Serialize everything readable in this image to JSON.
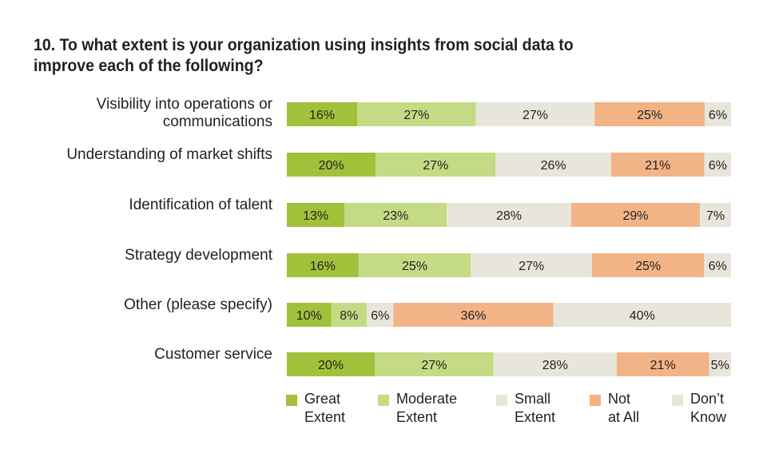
{
  "title_line1": "10. To what extent is your organization using insights from social data to",
  "title_line2": "improve each of the following?",
  "colors": {
    "great": "#a2c13a",
    "moderate": "#c5da85",
    "small": "#e8e6da",
    "not_at_all": "#f2b486",
    "dont_know": "#e8e6da"
  },
  "legend": [
    {
      "line1": "Great",
      "line2": "Extent",
      "color": "#a2c13a"
    },
    {
      "line1": "Moderate",
      "line2": "Extent",
      "color": "#c5da85"
    },
    {
      "line1": "Small",
      "line2": "Extent",
      "color": "#e8e6da"
    },
    {
      "line1": "Not",
      "line2": "at All",
      "color": "#f2b486"
    },
    {
      "line1": "Don’t",
      "line2": "Know",
      "color": "#e8e6da"
    }
  ],
  "chart_data": {
    "type": "bar",
    "orientation": "horizontal",
    "stacked": true,
    "stack_mode": "percent",
    "categories": [
      "Visibility into operations or\ncommunications",
      "Understanding of market shifts",
      "Identification of talent",
      "Strategy development",
      "Other (please specify)",
      "Customer service"
    ],
    "series": [
      {
        "name": "Great Extent",
        "color": "#a2c13a",
        "values": [
          16,
          20,
          13,
          16,
          10,
          20
        ]
      },
      {
        "name": "Moderate Extent",
        "color": "#c5da85",
        "values": [
          27,
          27,
          23,
          25,
          8,
          27
        ]
      },
      {
        "name": "Small Extent",
        "color": "#e8e6da",
        "values": [
          27,
          26,
          28,
          27,
          6,
          28
        ]
      },
      {
        "name": "Not at All",
        "color": "#f2b486",
        "values": [
          25,
          21,
          29,
          25,
          36,
          21
        ]
      },
      {
        "name": "Don’t Know",
        "color": "#e8e6da",
        "values": [
          6,
          6,
          7,
          6,
          40,
          5
        ]
      }
    ],
    "value_suffix": "%",
    "grid": false,
    "legend_position": "bottom"
  }
}
